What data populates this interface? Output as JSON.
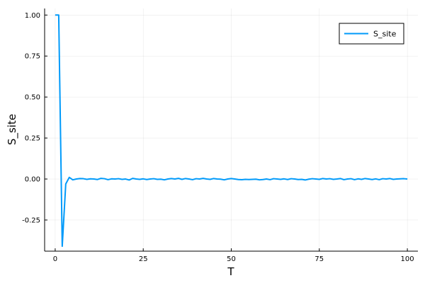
{
  "chart_data": {
    "type": "line",
    "title": "",
    "xlabel": "T",
    "ylabel": "S_site",
    "xlim": [
      -3,
      103
    ],
    "ylim": [
      -0.44,
      1.04
    ],
    "xticks": [
      0,
      25,
      50,
      75,
      100
    ],
    "xtick_labels": [
      "0",
      "25",
      "50",
      "75",
      "100"
    ],
    "yticks": [
      -0.25,
      0,
      0.25,
      0.5,
      0.75,
      1.0
    ],
    "ytick_labels": [
      "-0.25",
      "0.00",
      "0.25",
      "0.50",
      "0.75",
      "1.00"
    ],
    "grid": true,
    "legend_position": "top-right",
    "series": [
      {
        "name": "S_site",
        "color": "#009AFA",
        "x": [
          0,
          1,
          2,
          3,
          4,
          5,
          6,
          7,
          8,
          9,
          10,
          11,
          12,
          13,
          14,
          15,
          16,
          17,
          18,
          19,
          20,
          21,
          22,
          23,
          24,
          25,
          26,
          27,
          28,
          29,
          30,
          31,
          32,
          33,
          34,
          35,
          36,
          37,
          38,
          39,
          40,
          41,
          42,
          43,
          44,
          45,
          46,
          47,
          48,
          49,
          50,
          51,
          52,
          53,
          54,
          55,
          56,
          57,
          58,
          59,
          60,
          61,
          62,
          63,
          64,
          65,
          66,
          67,
          68,
          69,
          70,
          71,
          72,
          73,
          74,
          75,
          76,
          77,
          78,
          79,
          80,
          81,
          82,
          83,
          84,
          85,
          86,
          87,
          88,
          89,
          90,
          91,
          92,
          93,
          94,
          95,
          96,
          97,
          98,
          99,
          100
        ],
        "y": [
          1.0,
          1.0,
          -0.41,
          -0.03,
          0.01,
          -0.005,
          0.0,
          0.003,
          0.002,
          -0.002,
          0.001,
          0.0,
          -0.003,
          0.004,
          0.002,
          -0.004,
          0.001,
          0.0,
          0.002,
          -0.002,
          0.0,
          -0.006,
          0.004,
          0.0,
          -0.002,
          0.001,
          -0.003,
          0.0,
          0.002,
          -0.002,
          -0.001,
          -0.005,
          0.0,
          0.003,
          0.0,
          0.004,
          -0.002,
          0.003,
          0.0,
          -0.004,
          0.002,
          0.0,
          0.004,
          0.0,
          -0.002,
          0.003,
          0.0,
          -0.001,
          -0.005,
          0.0,
          0.003,
          0.0,
          -0.003,
          -0.004,
          -0.002,
          -0.003,
          -0.002,
          -0.001,
          -0.005,
          -0.003,
          0.0,
          -0.004,
          0.002,
          0.0,
          -0.002,
          0.001,
          -0.003,
          0.002,
          0.0,
          -0.003,
          -0.002,
          -0.006,
          -0.001,
          0.002,
          0.0,
          -0.002,
          0.003,
          0.0,
          0.002,
          -0.002,
          0.0,
          0.003,
          -0.004,
          0.0,
          0.002,
          -0.004,
          0.001,
          -0.002,
          0.003,
          0.0,
          -0.003,
          0.001,
          -0.004,
          0.002,
          0.0,
          0.003,
          -0.002,
          0.0,
          0.001,
          0.002,
          0.0
        ]
      }
    ]
  }
}
